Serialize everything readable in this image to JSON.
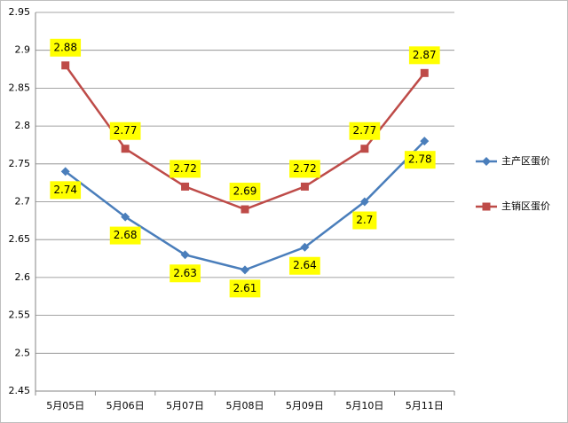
{
  "chart_data": {
    "type": "line",
    "categories": [
      "5月05日",
      "5月06日",
      "5月07日",
      "5月08日",
      "5月09日",
      "5月10日",
      "5月11日"
    ],
    "series": [
      {
        "name": "主产区蛋价",
        "color": "#4a7ebb",
        "marker": "diamond",
        "values": [
          2.74,
          2.68,
          2.63,
          2.61,
          2.64,
          2.7,
          2.78
        ]
      },
      {
        "name": "主销区蛋价",
        "color": "#be4b48",
        "marker": "square",
        "values": [
          2.88,
          2.77,
          2.72,
          2.69,
          2.72,
          2.77,
          2.87
        ]
      }
    ],
    "ylim": [
      2.45,
      2.95
    ],
    "yticks": [
      2.45,
      2.5,
      2.55,
      2.6,
      2.65,
      2.7,
      2.75,
      2.8,
      2.85,
      2.9,
      2.95
    ],
    "grid": true,
    "legend": "right"
  }
}
